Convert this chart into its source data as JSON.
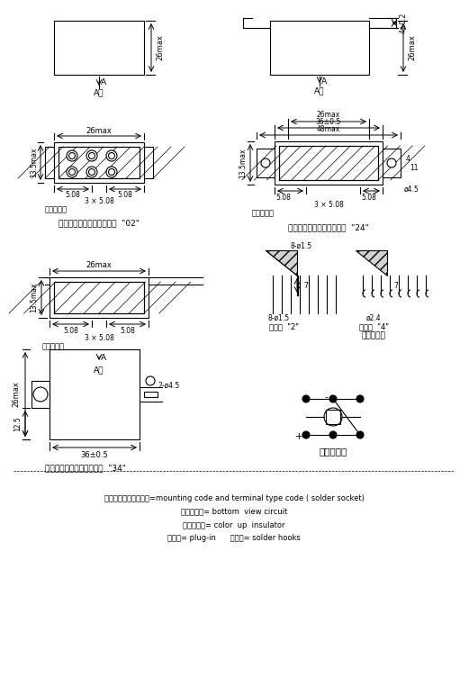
{
  "bg_color": "#ffffff",
  "line_color": "#000000",
  "hatch_color": "#000000",
  "text_color": "#000000",
  "legend_lines": [
    "安装方式及引出端型式=mounting code and terminal type code ( solder socket)",
    "底视电路图= bottom  view circuit",
    "着色绝缘子= color  up  insulator",
    "插针式= plug-in      焊钩式= solder hooks"
  ],
  "label_02": "安装方式及引出端型式代号  \"02\"",
  "label_24": "安装方式及引出端型式代号  \"24\"",
  "label_34": "安装方式及引出端型式代号  \"34\"",
  "label_bottom": "底视电路图",
  "label_terminal": "引出端型式",
  "label_pin2": "插针式  \"2\"",
  "label_hook4": "焊钩式  \"4\""
}
